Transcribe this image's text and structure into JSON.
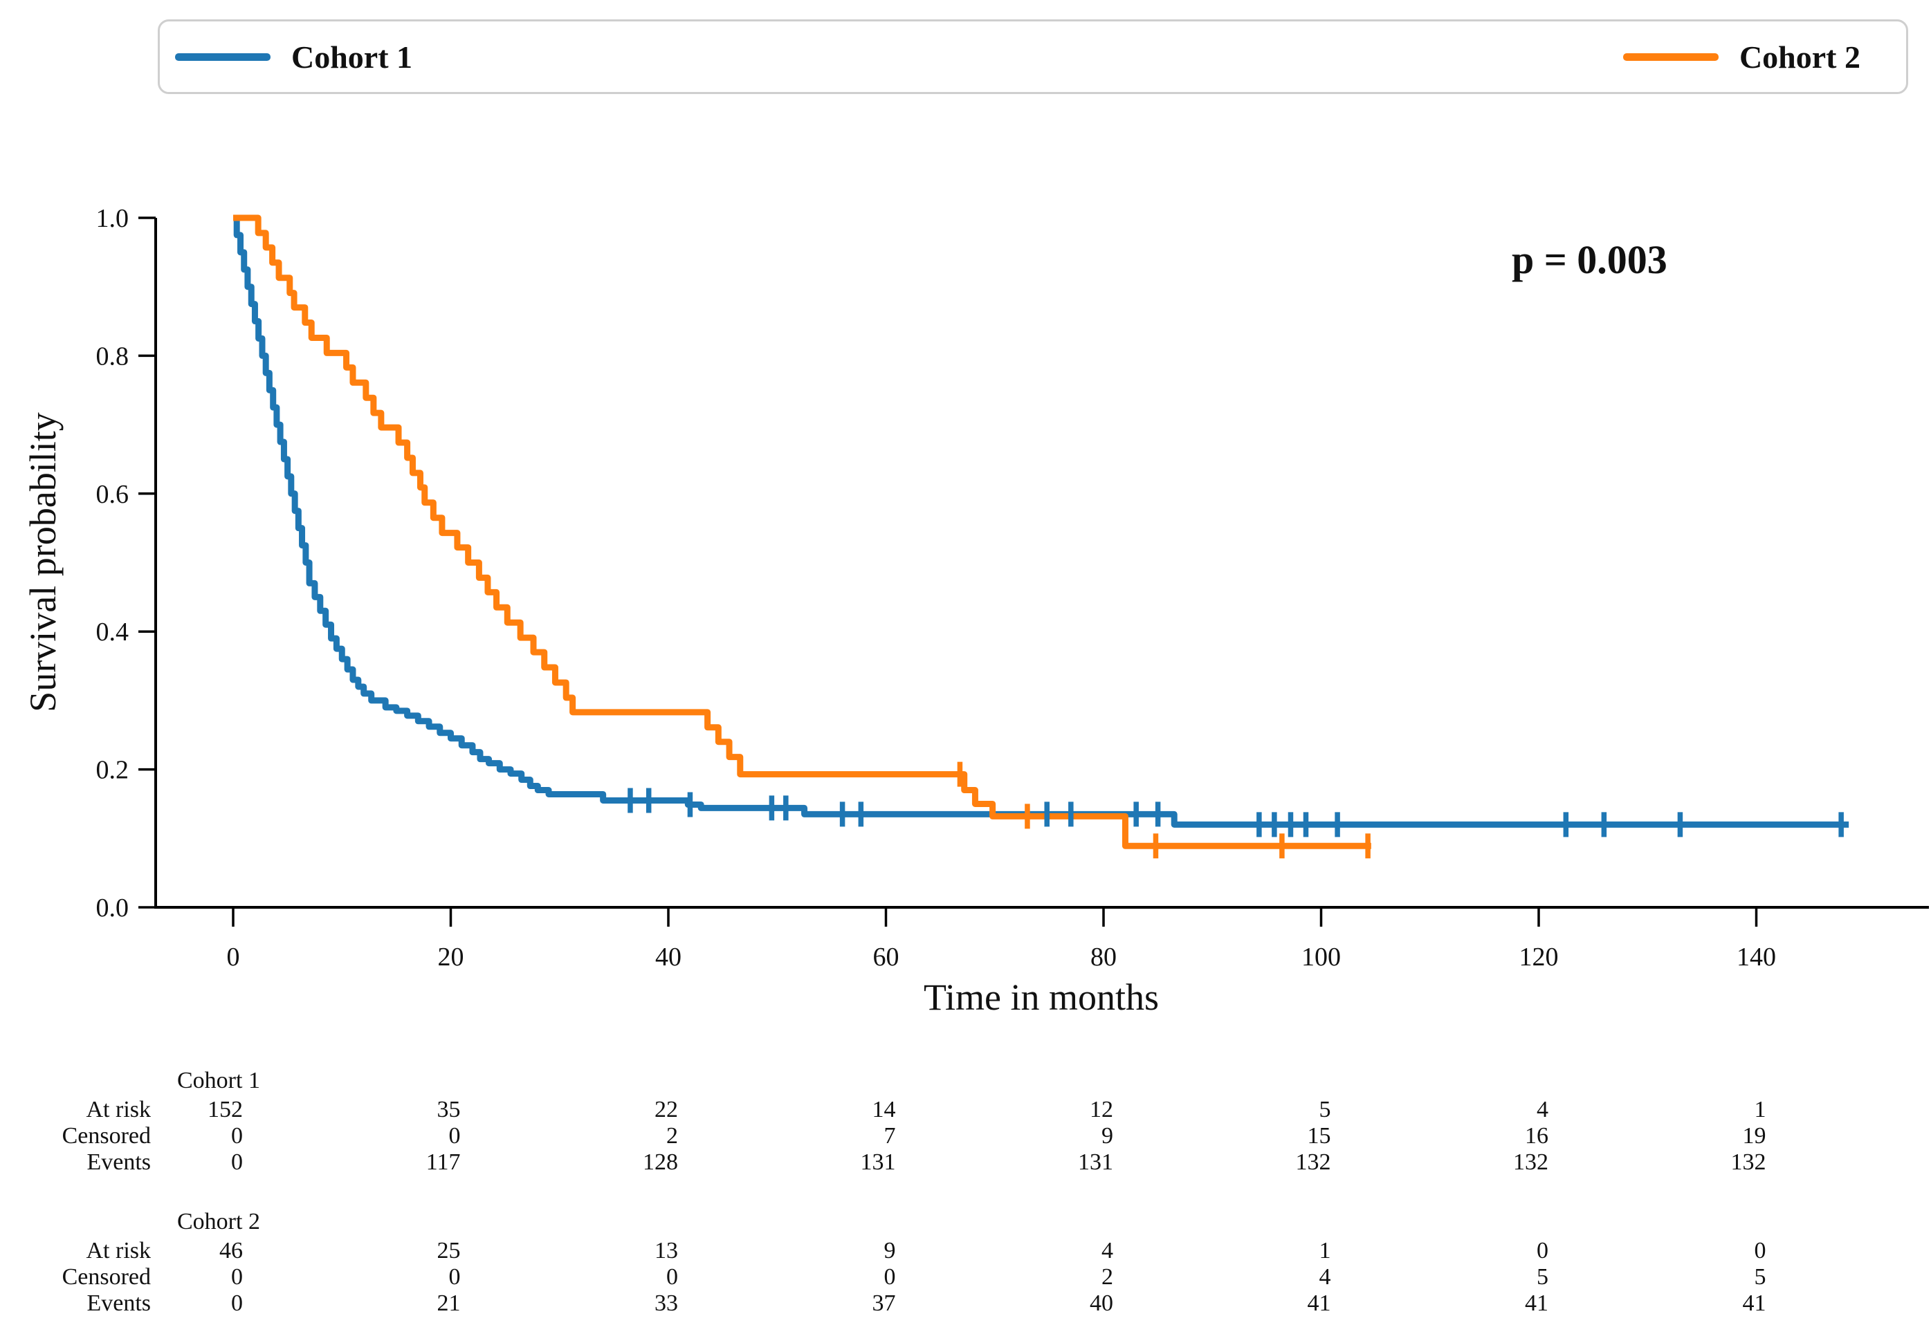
{
  "legend": {
    "items": [
      {
        "label": "Cohort 1",
        "color": "#1f77b4"
      },
      {
        "label": "Cohort 2",
        "color": "#ff7f0e"
      }
    ]
  },
  "chart_data": {
    "type": "line",
    "subtype": "kaplan-meier-step",
    "title": "",
    "xlabel": "Time in months",
    "ylabel": "Survival probability",
    "p_value_text": "p = 0.003",
    "xlim": [
      -7,
      156
    ],
    "ylim": [
      0.0,
      1.0
    ],
    "xticks": [
      0,
      20,
      40,
      60,
      80,
      100,
      120,
      140
    ],
    "yticks": [
      0.0,
      0.2,
      0.4,
      0.6,
      0.8,
      1.0
    ],
    "grid": false,
    "legend_position": "top",
    "series": [
      {
        "name": "Cohort 1",
        "color": "#1f77b4",
        "end_time": 148.5,
        "steps": [
          [
            0,
            1.0
          ],
          [
            0.33,
            0.975
          ],
          [
            0.67,
            0.95
          ],
          [
            1,
            0.925
          ],
          [
            1.33,
            0.9
          ],
          [
            1.67,
            0.875
          ],
          [
            2,
            0.85
          ],
          [
            2.33,
            0.825
          ],
          [
            2.67,
            0.8
          ],
          [
            3,
            0.775
          ],
          [
            3.33,
            0.75
          ],
          [
            3.67,
            0.725
          ],
          [
            4,
            0.7
          ],
          [
            4.33,
            0.675
          ],
          [
            4.67,
            0.65
          ],
          [
            5,
            0.625
          ],
          [
            5.33,
            0.6
          ],
          [
            5.67,
            0.575
          ],
          [
            6,
            0.55
          ],
          [
            6.33,
            0.525
          ],
          [
            6.67,
            0.5
          ],
          [
            7,
            0.47
          ],
          [
            7.5,
            0.45
          ],
          [
            8,
            0.43
          ],
          [
            8.5,
            0.41
          ],
          [
            9,
            0.39
          ],
          [
            9.5,
            0.375
          ],
          [
            10,
            0.36
          ],
          [
            10.5,
            0.345
          ],
          [
            11,
            0.33
          ],
          [
            11.5,
            0.32
          ],
          [
            12,
            0.31
          ],
          [
            12.7,
            0.3
          ],
          [
            14,
            0.29
          ],
          [
            15,
            0.285
          ],
          [
            16,
            0.278
          ],
          [
            17,
            0.27
          ],
          [
            18,
            0.262
          ],
          [
            19,
            0.253
          ],
          [
            20,
            0.245
          ],
          [
            21,
            0.235
          ],
          [
            22,
            0.225
          ],
          [
            22.7,
            0.215
          ],
          [
            23.5,
            0.209
          ],
          [
            24.5,
            0.2
          ],
          [
            25.5,
            0.194
          ],
          [
            26.5,
            0.185
          ],
          [
            27.3,
            0.176
          ],
          [
            28,
            0.17
          ],
          [
            29,
            0.164
          ],
          [
            34,
            0.155
          ],
          [
            41.8,
            0.149
          ],
          [
            43,
            0.144
          ],
          [
            52.5,
            0.135
          ],
          [
            86.5,
            0.12
          ]
        ],
        "censors": [
          [
            36.5,
            0.155
          ],
          [
            38.2,
            0.155
          ],
          [
            42,
            0.149
          ],
          [
            49.5,
            0.144
          ],
          [
            50.8,
            0.144
          ],
          [
            56,
            0.135
          ],
          [
            57.7,
            0.135
          ],
          [
            74.8,
            0.135
          ],
          [
            77,
            0.135
          ],
          [
            83,
            0.135
          ],
          [
            85,
            0.135
          ],
          [
            94.3,
            0.12
          ],
          [
            95.7,
            0.12
          ],
          [
            97.2,
            0.12
          ],
          [
            98.6,
            0.12
          ],
          [
            101.5,
            0.12
          ],
          [
            122.5,
            0.12
          ],
          [
            126,
            0.12
          ],
          [
            133,
            0.12
          ],
          [
            147.8,
            0.12
          ]
        ]
      },
      {
        "name": "Cohort 2",
        "color": "#ff7f0e",
        "end_time": 104.6,
        "steps": [
          [
            0,
            1.0
          ],
          [
            2.3,
            0.978
          ],
          [
            3,
            0.957
          ],
          [
            3.6,
            0.935
          ],
          [
            4.2,
            0.913
          ],
          [
            5.2,
            0.891
          ],
          [
            5.6,
            0.87
          ],
          [
            6.6,
            0.848
          ],
          [
            7.2,
            0.826
          ],
          [
            8.6,
            0.804
          ],
          [
            10.4,
            0.783
          ],
          [
            11,
            0.761
          ],
          [
            12.2,
            0.739
          ],
          [
            12.9,
            0.717
          ],
          [
            13.6,
            0.696
          ],
          [
            15.2,
            0.674
          ],
          [
            16,
            0.652
          ],
          [
            16.5,
            0.63
          ],
          [
            17.2,
            0.609
          ],
          [
            17.6,
            0.587
          ],
          [
            18.4,
            0.565
          ],
          [
            19.2,
            0.543
          ],
          [
            20.6,
            0.522
          ],
          [
            21.6,
            0.5
          ],
          [
            22.6,
            0.478
          ],
          [
            23.4,
            0.457
          ],
          [
            24.2,
            0.435
          ],
          [
            25.2,
            0.413
          ],
          [
            26.4,
            0.391
          ],
          [
            27.6,
            0.37
          ],
          [
            28.6,
            0.348
          ],
          [
            29.6,
            0.326
          ],
          [
            30.6,
            0.304
          ],
          [
            31.2,
            0.283
          ],
          [
            43.6,
            0.261
          ],
          [
            44.6,
            0.24
          ],
          [
            45.6,
            0.218
          ],
          [
            46.6,
            0.193
          ],
          [
            67.2,
            0.17
          ],
          [
            68.2,
            0.15
          ],
          [
            69.8,
            0.132
          ],
          [
            82,
            0.089
          ]
        ],
        "censors": [
          [
            66.8,
            0.193
          ],
          [
            73,
            0.132
          ],
          [
            84.8,
            0.089
          ],
          [
            96.4,
            0.089
          ],
          [
            104.3,
            0.089
          ]
        ]
      }
    ]
  },
  "risk_table": {
    "time_points": [
      0,
      20,
      40,
      60,
      80,
      100,
      120,
      140
    ],
    "row_labels": [
      "At risk",
      "Censored",
      "Events"
    ],
    "groups": [
      {
        "name": "Cohort 1",
        "at_risk": [
          152,
          35,
          22,
          14,
          12,
          5,
          4,
          1
        ],
        "censored": [
          0,
          0,
          2,
          7,
          9,
          15,
          16,
          19
        ],
        "events": [
          0,
          117,
          128,
          131,
          131,
          132,
          132,
          132
        ]
      },
      {
        "name": "Cohort 2",
        "at_risk": [
          46,
          25,
          13,
          9,
          4,
          1,
          0,
          0
        ],
        "censored": [
          0,
          0,
          0,
          0,
          2,
          4,
          5,
          5
        ],
        "events": [
          0,
          21,
          33,
          37,
          40,
          41,
          41,
          41
        ]
      }
    ]
  }
}
